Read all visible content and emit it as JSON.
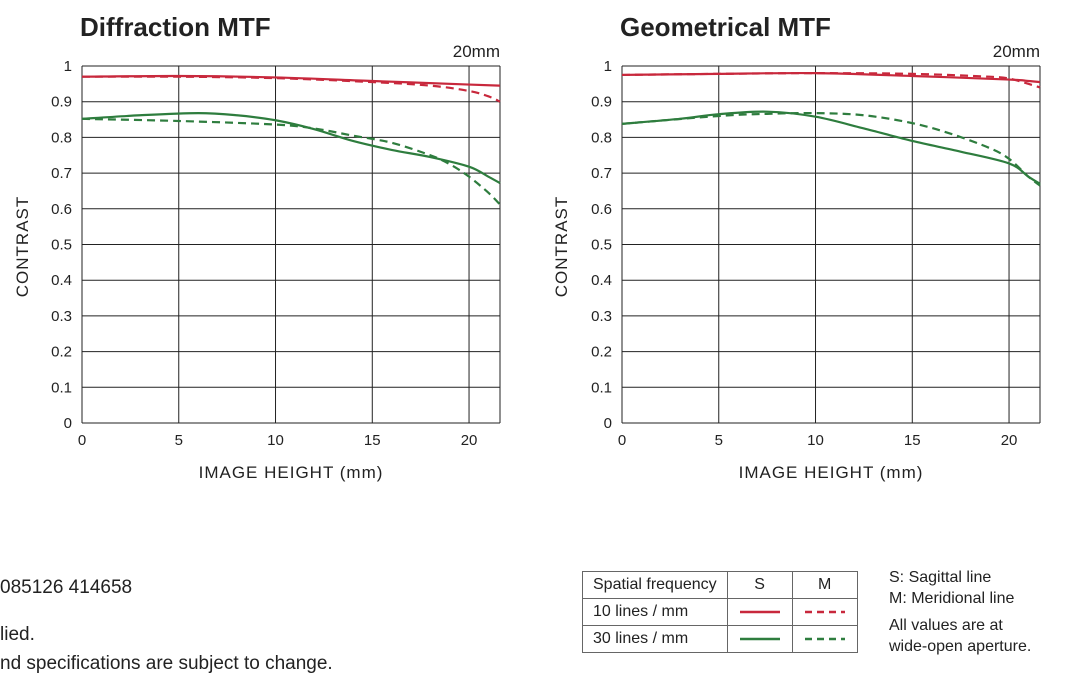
{
  "chart_data": [
    {
      "type": "line",
      "title": "Diffraction MTF",
      "focal_length": "20mm",
      "xlabel": "IMAGE HEIGHT (mm)",
      "ylabel": "CONTRAST",
      "xlim": [
        0,
        21.6
      ],
      "ylim": [
        0,
        1
      ],
      "xticks": [
        0,
        5,
        10,
        15,
        20
      ],
      "yticks": [
        0,
        0.1,
        0.2,
        0.3,
        0.4,
        0.5,
        0.6,
        0.7,
        0.8,
        0.9,
        1
      ],
      "ytick_labels": [
        "0",
        "0.1",
        "0.2",
        "0.3",
        "0.4",
        "0.5",
        "0.6",
        "0.7",
        "0.8",
        "0.9",
        "1"
      ],
      "grid": true,
      "series": [
        {
          "frequency": "10 lines / mm",
          "line": "S",
          "color": "#c8283c",
          "dash": false,
          "x": [
            0,
            5,
            10,
            15,
            20,
            21.6
          ],
          "y": [
            0.97,
            0.972,
            0.968,
            0.958,
            0.948,
            0.945
          ]
        },
        {
          "frequency": "10 lines / mm",
          "line": "M",
          "color": "#c8283c",
          "dash": true,
          "x": [
            0,
            5,
            10,
            15,
            18,
            20,
            21,
            21.6
          ],
          "y": [
            0.97,
            0.97,
            0.966,
            0.955,
            0.945,
            0.93,
            0.915,
            0.9
          ]
        },
        {
          "frequency": "30 lines / mm",
          "line": "S",
          "color": "#2e7d3e",
          "dash": false,
          "x": [
            0,
            3,
            6,
            8,
            10,
            12,
            14,
            16,
            18,
            20,
            21,
            21.6
          ],
          "y": [
            0.852,
            0.862,
            0.868,
            0.862,
            0.848,
            0.823,
            0.79,
            0.765,
            0.745,
            0.718,
            0.69,
            0.672
          ]
        },
        {
          "frequency": "30 lines / mm",
          "line": "M",
          "color": "#2e7d3e",
          "dash": true,
          "x": [
            0,
            5,
            10,
            12,
            14,
            16,
            18,
            19,
            20,
            21,
            21.6
          ],
          "y": [
            0.852,
            0.846,
            0.836,
            0.825,
            0.805,
            0.785,
            0.75,
            0.725,
            0.69,
            0.645,
            0.612
          ]
        }
      ]
    },
    {
      "type": "line",
      "title": "Geometrical MTF",
      "focal_length": "20mm",
      "xlabel": "IMAGE HEIGHT (mm)",
      "ylabel": "CONTRAST",
      "xlim": [
        0,
        21.6
      ],
      "ylim": [
        0,
        1
      ],
      "xticks": [
        0,
        5,
        10,
        15,
        20
      ],
      "yticks": [
        0,
        0.1,
        0.2,
        0.3,
        0.4,
        0.5,
        0.6,
        0.7,
        0.8,
        0.9,
        1
      ],
      "ytick_labels": [
        "0",
        "0.1",
        "0.2",
        "0.3",
        "0.4",
        "0.5",
        "0.6",
        "0.7",
        "0.8",
        "0.9",
        "1"
      ],
      "grid": true,
      "series": [
        {
          "frequency": "10 lines / mm",
          "line": "S",
          "color": "#c8283c",
          "dash": false,
          "x": [
            0,
            5,
            10,
            15,
            20,
            21,
            21.6
          ],
          "y": [
            0.975,
            0.978,
            0.98,
            0.972,
            0.962,
            0.958,
            0.955
          ]
        },
        {
          "frequency": "10 lines / mm",
          "line": "M",
          "color": "#c8283c",
          "dash": true,
          "x": [
            0,
            5,
            10,
            15,
            19,
            20,
            21,
            21.6
          ],
          "y": [
            0.975,
            0.978,
            0.98,
            0.978,
            0.97,
            0.965,
            0.95,
            0.94
          ]
        },
        {
          "frequency": "30 lines / mm",
          "line": "S",
          "color": "#2e7d3e",
          "dash": false,
          "x": [
            0,
            3,
            5,
            7.5,
            10,
            12.5,
            15,
            17.5,
            20,
            21,
            21.6
          ],
          "y": [
            0.838,
            0.852,
            0.865,
            0.872,
            0.858,
            0.825,
            0.79,
            0.76,
            0.727,
            0.69,
            0.67
          ]
        },
        {
          "frequency": "30 lines / mm",
          "line": "M",
          "color": "#2e7d3e",
          "dash": true,
          "x": [
            0,
            5,
            7.5,
            10,
            12.5,
            15,
            17,
            19,
            20,
            21,
            21.6
          ],
          "y": [
            0.838,
            0.86,
            0.866,
            0.868,
            0.862,
            0.84,
            0.81,
            0.77,
            0.74,
            0.69,
            0.665
          ]
        }
      ]
    }
  ],
  "legend": {
    "header_frequency": "Spatial frequency",
    "header_s": "S",
    "header_m": "M",
    "rows": [
      {
        "label": "10 lines / mm",
        "color": "#c8283c"
      },
      {
        "label": "30 lines / mm",
        "color": "#2e7d3e"
      }
    ],
    "notes": {
      "sagittal": "S: Sagittal line",
      "meridional": "M: Meridional line",
      "aperture_line1": "All values are at",
      "aperture_line2": "wide-open aperture."
    }
  },
  "footer": {
    "line1": "085126 414658",
    "line2": "lied.",
    "line3": "nd specifications are subject to change."
  }
}
